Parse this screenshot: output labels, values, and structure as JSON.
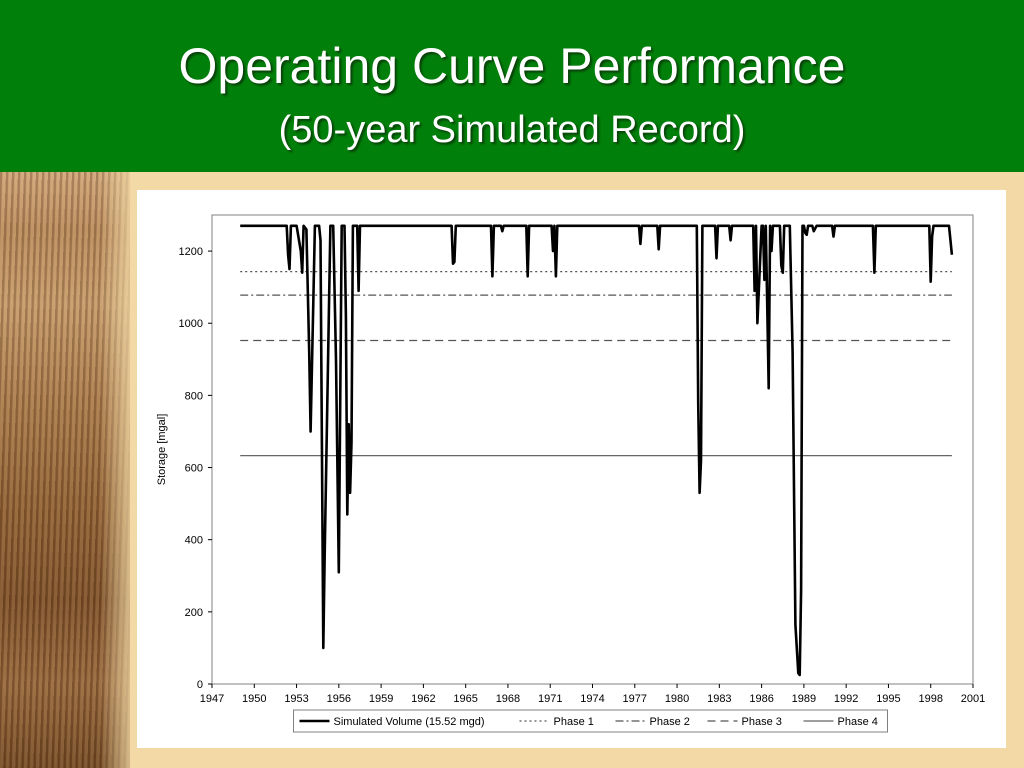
{
  "slide": {
    "title": "Operating Curve Performance",
    "subtitle": "(50-year Simulated Record)"
  },
  "colors": {
    "header_bg": "#00800a",
    "title_text": "#ffffff",
    "slide_bg": "#f2d9a6"
  },
  "chart_data": {
    "type": "line",
    "title": "",
    "xlabel": "",
    "ylabel": "Storage [mgal]",
    "xlim": [
      1947,
      2001
    ],
    "ylim": [
      0,
      1300
    ],
    "xticks": [
      1947,
      1950,
      1953,
      1956,
      1959,
      1962,
      1965,
      1968,
      1971,
      1974,
      1977,
      1980,
      1983,
      1986,
      1989,
      1992,
      1995,
      1998,
      2001
    ],
    "yticks": [
      0,
      200,
      400,
      600,
      800,
      1000,
      1200
    ],
    "grid": false,
    "legend": "bottom",
    "series": [
      {
        "name": "Simulated Volume (15.52 mgd)",
        "style": "solid-thick",
        "x": [
          1949.0,
          1952.3,
          1952.4,
          1952.5,
          1952.6,
          1953.0,
          1953.3,
          1953.4,
          1953.5,
          1953.7,
          1953.9,
          1954.0,
          1954.3,
          1954.6,
          1954.7,
          1954.9,
          1955.0,
          1955.3,
          1955.4,
          1955.5,
          1955.6,
          1955.8,
          1956.0,
          1956.2,
          1956.3,
          1956.4,
          1956.5,
          1956.6,
          1956.7,
          1956.8,
          1956.9,
          1957.0,
          1957.3,
          1957.4,
          1957.5,
          1964.0,
          1964.1,
          1964.2,
          1964.3,
          1966.8,
          1966.9,
          1967.0,
          1967.5,
          1967.6,
          1967.7,
          1969.3,
          1969.4,
          1969.5,
          1971.1,
          1971.2,
          1971.3,
          1971.4,
          1971.5,
          1977.3,
          1977.4,
          1977.5,
          1978.6,
          1978.7,
          1978.8,
          1981.4,
          1981.5,
          1981.6,
          1981.7,
          1981.8,
          1981.9,
          1982.0,
          1982.7,
          1982.8,
          1982.9,
          1983.7,
          1983.8,
          1983.9,
          1985.3,
          1985.4,
          1985.5,
          1985.6,
          1985.7,
          1986.0,
          1986.1,
          1986.2,
          1986.3,
          1986.5,
          1986.6,
          1986.7,
          1986.8,
          1987.3,
          1987.4,
          1987.5,
          1987.6,
          1987.7,
          1988.0,
          1988.2,
          1988.4,
          1988.6,
          1988.7,
          1988.8,
          1988.9,
          1989.0,
          1989.1,
          1989.2,
          1989.3,
          1989.6,
          1989.7,
          1989.9,
          1990.0,
          1991.0,
          1991.1,
          1991.2,
          1993.9,
          1994.0,
          1994.1,
          1997.9,
          1998.0,
          1998.1,
          1998.2,
          1998.3,
          1999.3,
          1999.5
        ],
        "y": [
          1270,
          1270,
          1190,
          1150,
          1270,
          1270,
          1200,
          1140,
          1270,
          1260,
          920,
          700,
          1270,
          1270,
          1230,
          100,
          360,
          1050,
          1270,
          1270,
          1270,
          900,
          310,
          1270,
          1270,
          1270,
          1020,
          470,
          720,
          530,
          670,
          1270,
          1270,
          1090,
          1270,
          1270,
          1165,
          1170,
          1270,
          1270,
          1130,
          1270,
          1270,
          1255,
          1270,
          1270,
          1130,
          1270,
          1270,
          1200,
          1270,
          1130,
          1270,
          1270,
          1220,
          1270,
          1270,
          1205,
          1270,
          1270,
          780,
          530,
          620,
          1270,
          1270,
          1270,
          1270,
          1180,
          1270,
          1270,
          1230,
          1270,
          1270,
          1270,
          1090,
          1270,
          1000,
          1270,
          1270,
          1120,
          1270,
          820,
          1270,
          1200,
          1270,
          1270,
          1160,
          1140,
          1270,
          1270,
          1270,
          920,
          165,
          30,
          25,
          260,
          1270,
          1270,
          1250,
          1245,
          1270,
          1270,
          1255,
          1270,
          1270,
          1270,
          1240,
          1270,
          1270,
          1140,
          1270,
          1270,
          1115,
          1240,
          1270,
          1270,
          1270,
          1190
        ]
      },
      {
        "name": "Phase 1",
        "style": "dotted",
        "x": [
          1949.0,
          1999.5
        ],
        "y": [
          1143,
          1143
        ]
      },
      {
        "name": "Phase 2",
        "style": "dash-dot",
        "x": [
          1949.0,
          1999.5
        ],
        "y": [
          1078,
          1078
        ]
      },
      {
        "name": "Phase 3",
        "style": "dashed",
        "x": [
          1949.0,
          1999.5
        ],
        "y": [
          952,
          952
        ]
      },
      {
        "name": "Phase 4",
        "style": "solid-thin",
        "x": [
          1949.0,
          1999.5
        ],
        "y": [
          633,
          633
        ]
      }
    ]
  }
}
